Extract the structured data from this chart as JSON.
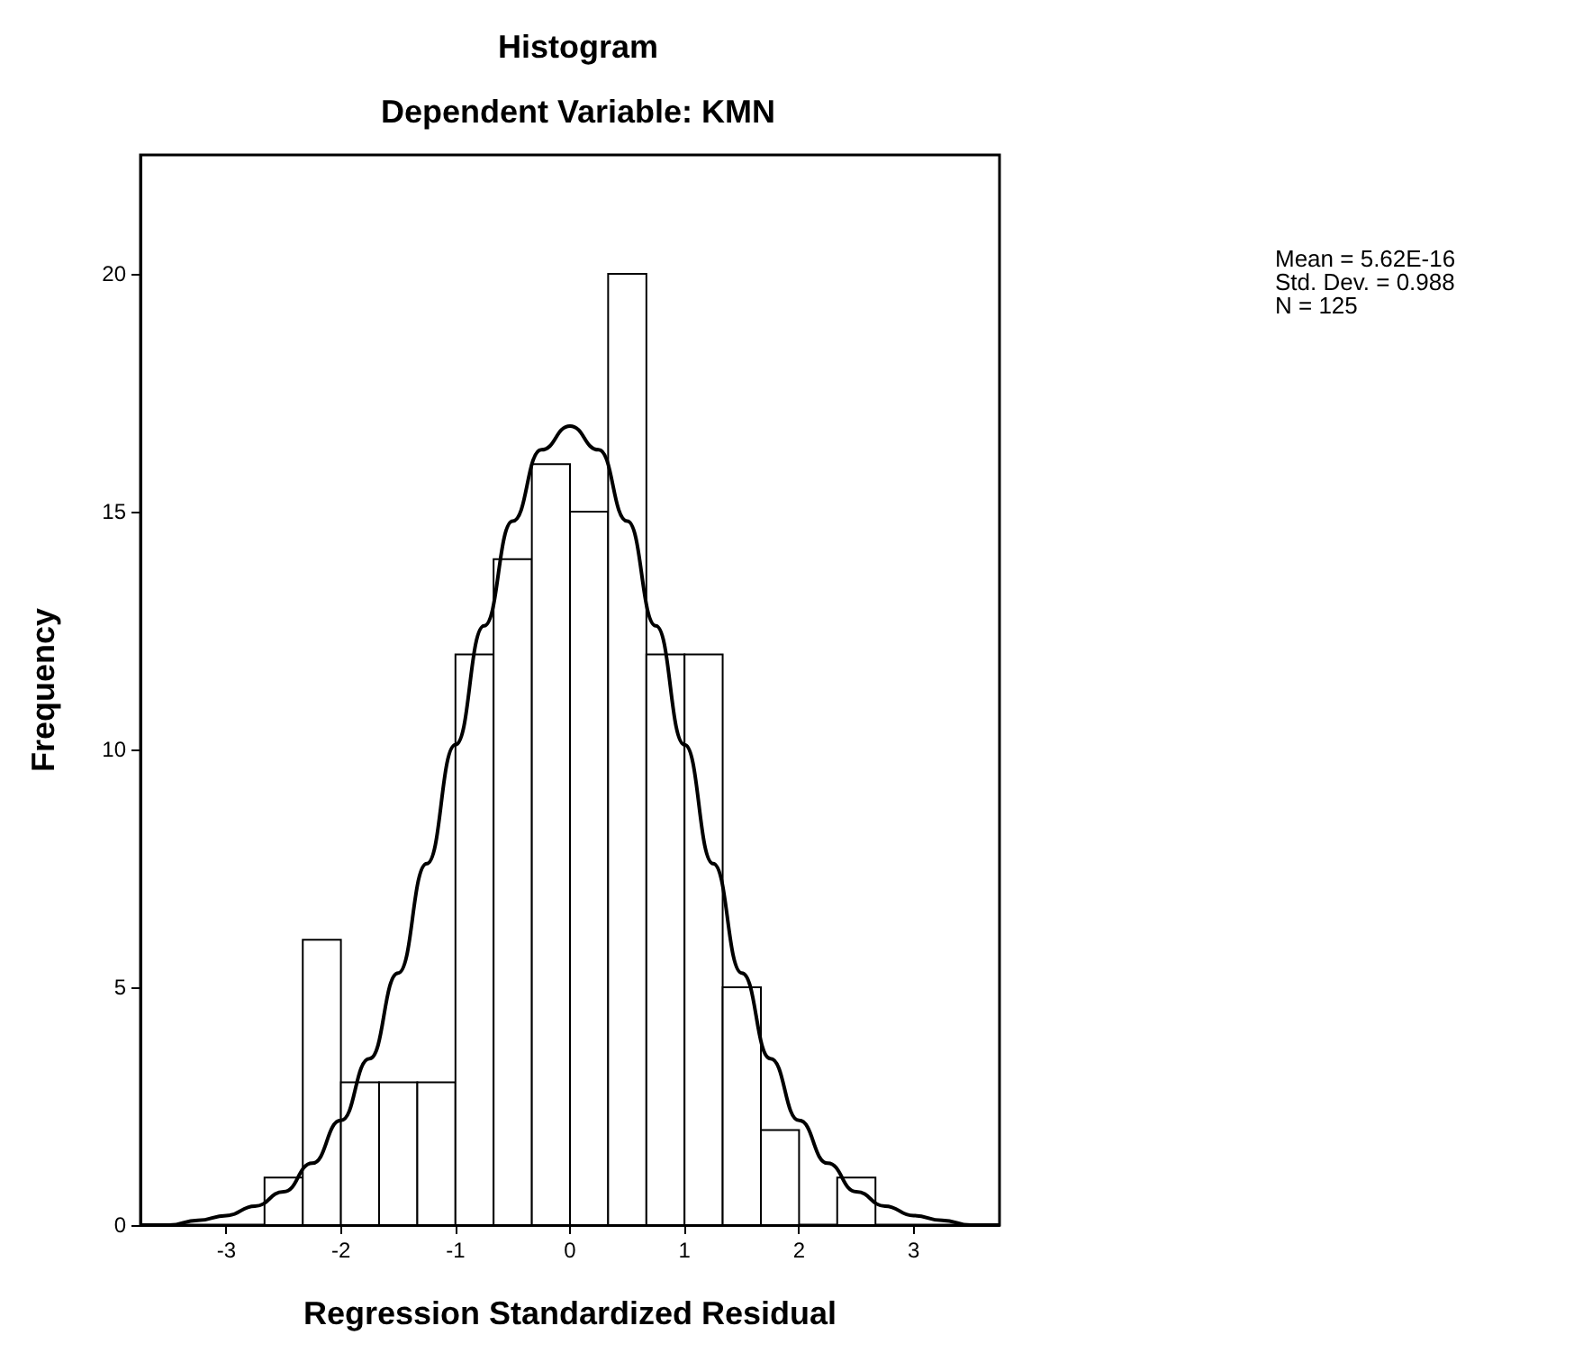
{
  "chart_data": {
    "type": "histogram",
    "title": "Histogram",
    "subtitle": "Dependent Variable: KMN",
    "xlabel": "Regression Standardized Residual",
    "ylabel": "Frequency",
    "bins": [
      -2.667,
      -2.333,
      -2,
      -1.667,
      -1.333,
      -1,
      -0.667,
      -0.333,
      0,
      0.333,
      0.667,
      1,
      1.333,
      1.667,
      2,
      2.333,
      2.667
    ],
    "values": [
      1,
      6,
      3,
      3,
      3,
      12,
      14,
      16,
      15,
      20,
      12,
      12,
      5,
      2,
      0,
      1
    ],
    "color": "#ffffff",
    "series": [
      {
        "type": "line",
        "color": "#000000",
        "x": [
          -3.75,
          -3.5,
          -3.25,
          -3,
          -2.75,
          -2.5,
          -2.25,
          -2,
          -1.75,
          -1.5,
          -1.25,
          -1,
          -0.75,
          -0.5,
          -0.25,
          0,
          0.25,
          0.5,
          0.75,
          1,
          1.25,
          1.5,
          1.75,
          2,
          2.25,
          2.5,
          2.75,
          3,
          3.25,
          3.5,
          3.75
        ],
        "values": [
          0,
          0,
          0.1,
          0.2,
          0.4,
          0.7,
          1.3,
          2.2,
          3.5,
          5.3,
          7.6,
          10.1,
          12.6,
          14.8,
          16.3,
          16.8,
          16.3,
          14.8,
          12.6,
          10.1,
          7.6,
          5.3,
          3.5,
          2.2,
          1.3,
          0.7,
          0.4,
          0.2,
          0.1,
          0,
          0
        ]
      }
    ],
    "xlim": [
      -3.75,
      3.75
    ],
    "xticks": [
      -3,
      -2,
      -1,
      0,
      1,
      2,
      3
    ],
    "ylim": [
      0,
      22.5
    ],
    "yticks": [
      0,
      5,
      10,
      15,
      20
    ],
    "grid": false,
    "annotations": [
      "Mean = 5.62E-16",
      "Std. Dev. = 0.988",
      "N = 125"
    ]
  }
}
